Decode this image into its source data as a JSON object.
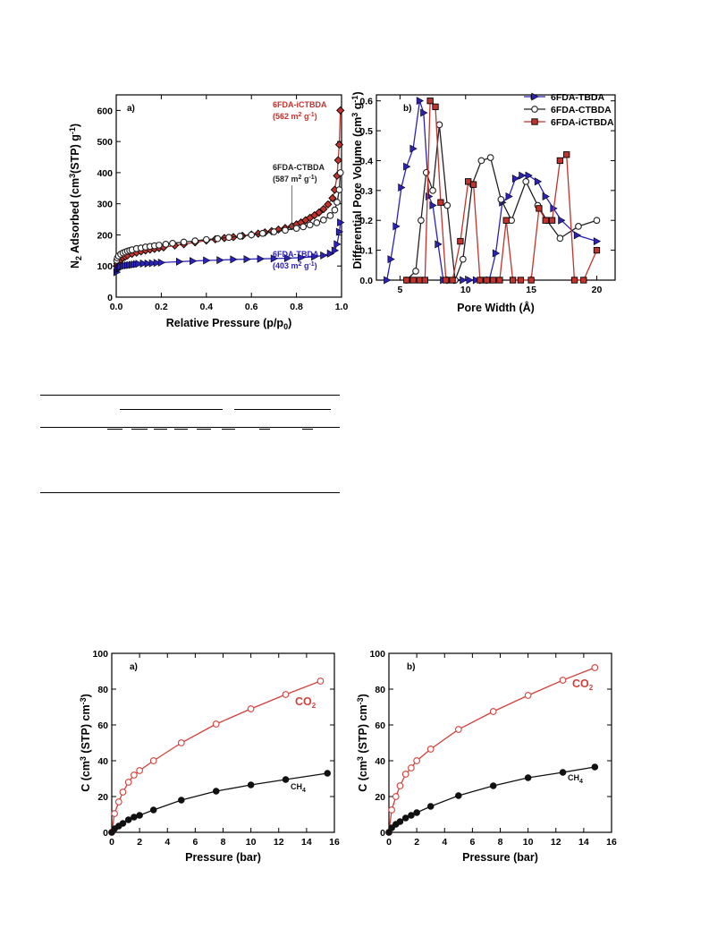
{
  "colors": {
    "tbda": "#2b22b8",
    "ctbda": "#222222",
    "ictbda": "#c3322b",
    "co2": "#d3403a",
    "ch4": "#111111"
  },
  "chart_data": [
    {
      "id": "iso",
      "type": "scatter",
      "panel_label": "a)",
      "xlabel_main": "Relative Pressure (p/p",
      "xlabel_sub": "0",
      "xlabel_end": ")",
      "ylabel_p1": "N",
      "ylabel_sub": "2",
      "ylabel_p2": " Adsorbed (cm",
      "ylabel_sup1": "3",
      "ylabel_p3": "(STP) g",
      "ylabel_sup2": "-1",
      "ylabel_p4": ")",
      "xlim": [
        0.0,
        1.0
      ],
      "ylim": [
        0,
        650
      ],
      "xticks": [
        "0.0",
        "0.2",
        "0.4",
        "0.6",
        "0.8",
        "1.0"
      ],
      "yticks": [
        "0",
        "100",
        "200",
        "300",
        "400",
        "500",
        "600"
      ],
      "annotations": [
        {
          "name": "6FDA-iCTBDA",
          "line1": "6FDA-iCTBDA",
          "line2": "(562 m",
          "sup": "2",
          "line2_end": " g",
          "sup2": "-1",
          "end": ")",
          "color": "#c3322b"
        },
        {
          "name": "6FDA-CTBDA",
          "line1": "6FDA-CTBDA",
          "line2": "(587 m",
          "sup": "2",
          "line2_end": " g",
          "sup2": "-1",
          "end": ")",
          "color": "#222222"
        },
        {
          "name": "6FDA-TBDA",
          "line1": "6FDA-TBDA",
          "line2": "(403 m",
          "sup": "2",
          "line2_end": " g",
          "sup2": "-1",
          "end": ")",
          "color": "#2b22b8"
        }
      ],
      "series": [
        {
          "name": "6FDA-iCTBDA",
          "marker": "diamond",
          "x": [
            0.002,
            0.005,
            0.01,
            0.02,
            0.03,
            0.04,
            0.05,
            0.07,
            0.09,
            0.11,
            0.13,
            0.15,
            0.17,
            0.19,
            0.21,
            0.26,
            0.3,
            0.35,
            0.4,
            0.44,
            0.48,
            0.52,
            0.56,
            0.6,
            0.63,
            0.66,
            0.69,
            0.72,
            0.75,
            0.78,
            0.8,
            0.82,
            0.84,
            0.86,
            0.88,
            0.9,
            0.92,
            0.94,
            0.96,
            0.97,
            0.98,
            0.985,
            0.99,
            0.995
          ],
          "y": [
            100,
            108,
            114,
            120,
            126,
            130,
            134,
            139,
            143,
            147,
            150,
            153,
            155,
            158,
            160,
            166,
            170,
            176,
            182,
            186,
            190,
            193,
            197,
            201,
            204,
            208,
            212,
            217,
            222,
            228,
            234,
            240,
            247,
            255,
            263,
            272,
            283,
            298,
            318,
            345,
            390,
            440,
            490,
            600
          ]
        },
        {
          "name": "6FDA-CTBDA",
          "marker": "circle",
          "x": [
            0.002,
            0.005,
            0.01,
            0.02,
            0.03,
            0.04,
            0.05,
            0.06,
            0.07,
            0.09,
            0.11,
            0.13,
            0.15,
            0.17,
            0.19,
            0.22,
            0.25,
            0.3,
            0.35,
            0.4,
            0.45,
            0.5,
            0.55,
            0.6,
            0.65,
            0.7,
            0.75,
            0.8,
            0.83,
            0.86,
            0.89,
            0.92,
            0.95,
            0.97,
            0.98,
            0.99,
            0.995
          ],
          "y": [
            118,
            126,
            132,
            138,
            142,
            145,
            148,
            150,
            152,
            156,
            158,
            161,
            163,
            165,
            167,
            170,
            173,
            177,
            181,
            185,
            188,
            192,
            196,
            200,
            205,
            210,
            215,
            221,
            226,
            232,
            239,
            248,
            262,
            280,
            305,
            345,
            400
          ]
        },
        {
          "name": "6FDA-TBDA",
          "marker": "triangle-right",
          "x": [
            0.002,
            0.005,
            0.01,
            0.015,
            0.02,
            0.03,
            0.04,
            0.05,
            0.06,
            0.07,
            0.08,
            0.09,
            0.1,
            0.12,
            0.14,
            0.16,
            0.18,
            0.2,
            0.28,
            0.34,
            0.4,
            0.46,
            0.52,
            0.58,
            0.64,
            0.7,
            0.76,
            0.82,
            0.88,
            0.92,
            0.95,
            0.97,
            0.98,
            0.99,
            0.995
          ],
          "y": [
            80,
            88,
            93,
            96,
            98,
            100,
            101,
            102,
            103,
            104,
            105,
            106,
            107,
            108,
            108,
            109,
            110,
            111,
            114,
            116,
            118,
            119,
            121,
            122,
            123,
            124,
            125,
            127,
            130,
            134,
            140,
            150,
            170,
            210,
            240
          ]
        }
      ]
    },
    {
      "id": "psd",
      "type": "line",
      "panel_label": "b)",
      "xlabel": "Pore Width (Å)",
      "ylabel_p1": "Differential Pore Volume (cm",
      "ylabel_sup1": "3",
      "ylabel_p2": " g",
      "ylabel_sup2": "-1",
      "ylabel_p3": ")",
      "xlim": [
        3.2,
        21.4
      ],
      "ylim": [
        0,
        0.62
      ],
      "xticks": [
        "5",
        "10",
        "15",
        "20"
      ],
      "yticks": [
        "0.0",
        "0.1",
        "0.2",
        "0.3",
        "0.4",
        "0.5",
        "0.6"
      ],
      "legend": [
        "6FDA-TBDA",
        "6FDA-CTBDA",
        "6FDA-iCTBDA"
      ],
      "legend_position": "top-right",
      "series": [
        {
          "name": "6FDA-TBDA",
          "marker": "triangle-right",
          "x": [
            4.0,
            4.3,
            4.7,
            5.1,
            5.5,
            6.0,
            6.5,
            6.8,
            7.2,
            7.5,
            7.9,
            8.3,
            8.8,
            9.3,
            9.8,
            10.3,
            10.8,
            11.3,
            11.8,
            12.3,
            12.8,
            13.3,
            13.8,
            14.3,
            14.8,
            15.5,
            16.1,
            16.7,
            17.3,
            18.5,
            20.0
          ],
          "y": [
            0.0,
            0.07,
            0.18,
            0.31,
            0.38,
            0.44,
            0.6,
            0.56,
            0.28,
            0.25,
            0.12,
            0.0,
            0.0,
            0.0,
            0.0,
            0.0,
            0.0,
            0.0,
            0.0,
            0.09,
            0.26,
            0.28,
            0.34,
            0.35,
            0.35,
            0.33,
            0.28,
            0.24,
            0.2,
            0.15,
            0.13
          ]
        },
        {
          "name": "6FDA-CTBDA",
          "marker": "circle",
          "x": [
            5.5,
            6.2,
            6.6,
            7.0,
            7.5,
            8.0,
            8.6,
            9.2,
            9.8,
            10.5,
            11.2,
            11.9,
            12.7,
            13.5,
            14.6,
            15.5,
            16.2,
            17.2,
            18.6,
            20.0
          ],
          "y": [
            0.0,
            0.03,
            0.2,
            0.36,
            0.3,
            0.52,
            0.25,
            0.0,
            0.07,
            0.32,
            0.4,
            0.41,
            0.27,
            0.2,
            0.33,
            0.25,
            0.2,
            0.14,
            0.18,
            0.2
          ]
        },
        {
          "name": "6FDA-iCTBDA",
          "marker": "square",
          "x": [
            5.5,
            6.0,
            6.5,
            6.9,
            7.3,
            7.7,
            8.1,
            8.5,
            9.0,
            9.6,
            10.2,
            10.6,
            11.1,
            11.6,
            12.1,
            12.6,
            13.1,
            13.6,
            14.2,
            15.0,
            15.6,
            16.1,
            16.6,
            17.2,
            17.7,
            18.3,
            19.0,
            20.0
          ],
          "y": [
            0.0,
            0.0,
            0.0,
            0.0,
            0.6,
            0.58,
            0.26,
            0.0,
            0.0,
            0.13,
            0.33,
            0.32,
            0.0,
            0.0,
            0.0,
            0.0,
            0.2,
            0.0,
            0.0,
            0.0,
            0.24,
            0.2,
            0.2,
            0.4,
            0.42,
            0.0,
            0.0,
            0.1
          ]
        }
      ]
    },
    {
      "id": "sorpA",
      "type": "line",
      "panel_label": "a)",
      "xlabel": "Pressure (bar)",
      "ylabel_p1": "C (cm",
      "ylabel_sup1": "3",
      "ylabel_p2": " (STP) cm",
      "ylabel_sup2": "-3",
      "ylabel_p3": ")",
      "xlim": [
        0,
        16
      ],
      "ylim": [
        0,
        100
      ],
      "xticks": [
        "0",
        "2",
        "4",
        "6",
        "8",
        "10",
        "12",
        "14",
        "16"
      ],
      "yticks": [
        "0",
        "20",
        "40",
        "60",
        "80",
        "100"
      ],
      "series": [
        {
          "name": "CO",
          "name_sub": "2",
          "marker": "open-circle",
          "x": [
            0.0,
            0.2,
            0.5,
            0.8,
            1.2,
            1.6,
            2.0,
            3.0,
            5.0,
            7.5,
            10.0,
            12.5,
            15.0
          ],
          "y": [
            0,
            10.5,
            17,
            22.5,
            28,
            32,
            34.5,
            40,
            50,
            60.5,
            69,
            77,
            84.5
          ]
        },
        {
          "name": "CH",
          "name_sub": "4",
          "marker": "filled-circle",
          "x": [
            0.0,
            0.2,
            0.5,
            0.8,
            1.2,
            1.6,
            2.0,
            3.0,
            5.0,
            7.5,
            10.0,
            12.5,
            15.5
          ],
          "y": [
            0,
            2,
            3.5,
            5,
            7,
            8.5,
            9.5,
            12.5,
            18,
            23,
            26.5,
            29.5,
            33
          ]
        }
      ]
    },
    {
      "id": "sorpB",
      "type": "line",
      "panel_label": "b)",
      "xlabel": "Pressure (bar)",
      "ylabel_p1": "C (cm",
      "ylabel_sup1": "3",
      "ylabel_p2": " (STP) cm",
      "ylabel_sup2": "-3",
      "ylabel_p3": ")",
      "xlim": [
        0,
        16
      ],
      "ylim": [
        0,
        100
      ],
      "xticks": [
        "0",
        "2",
        "4",
        "6",
        "8",
        "10",
        "12",
        "14",
        "16"
      ],
      "yticks": [
        "0",
        "20",
        "40",
        "60",
        "80",
        "100"
      ],
      "series": [
        {
          "name": "CO",
          "name_sub": "2",
          "marker": "open-circle",
          "x": [
            0.0,
            0.2,
            0.5,
            0.8,
            1.2,
            1.6,
            2.0,
            3.0,
            5.0,
            7.5,
            10.0,
            12.5,
            14.8
          ],
          "y": [
            0,
            12.5,
            20,
            26,
            32.5,
            36,
            40,
            46.5,
            57.5,
            67.5,
            76.5,
            85,
            92
          ]
        },
        {
          "name": "CH",
          "name_sub": "4",
          "marker": "filled-circle",
          "x": [
            0.0,
            0.2,
            0.5,
            0.8,
            1.2,
            1.6,
            2.0,
            3.0,
            5.0,
            7.5,
            10.0,
            12.5,
            14.8
          ],
          "y": [
            0,
            2.5,
            4.5,
            6,
            8,
            9.5,
            11,
            14.5,
            20.5,
            26,
            30.5,
            33.5,
            36.5
          ]
        }
      ]
    }
  ]
}
